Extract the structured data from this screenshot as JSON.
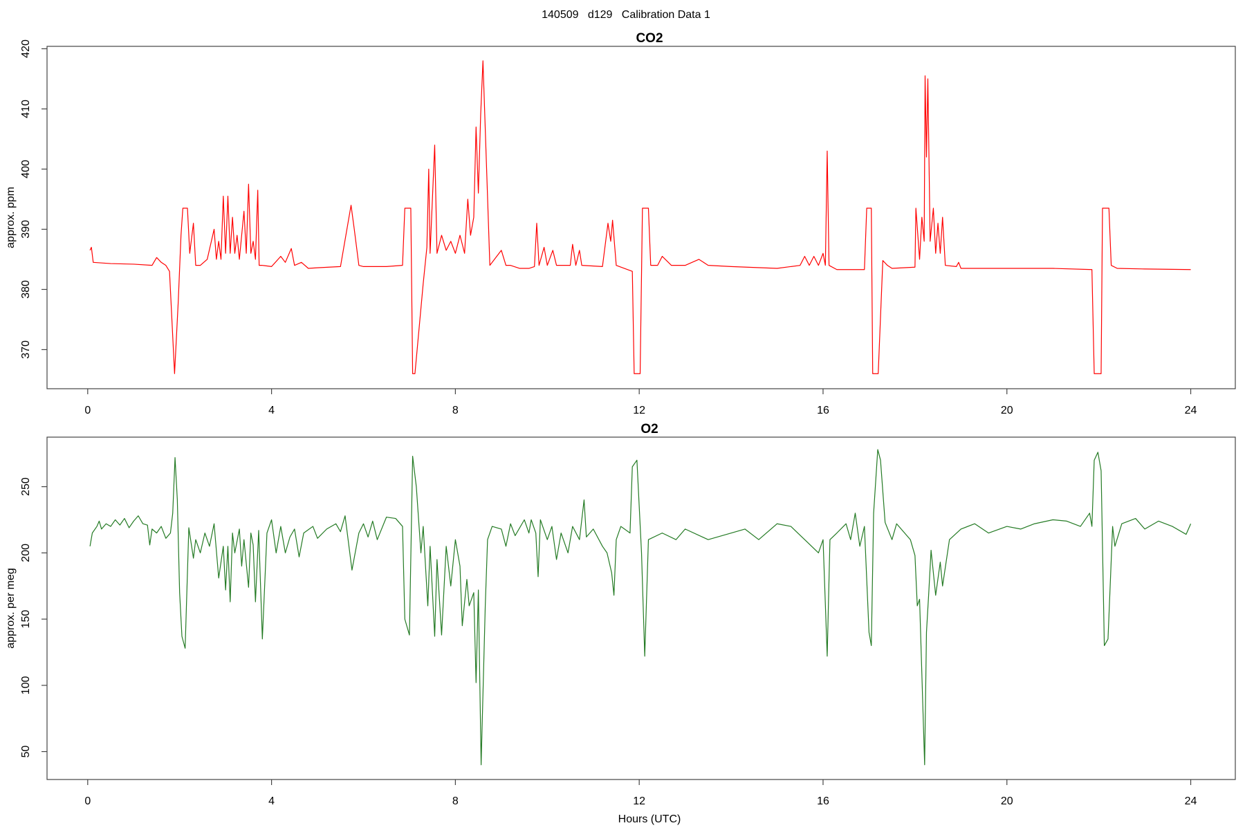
{
  "title": "140509   d129   Calibration Data 1",
  "chart_data": [
    {
      "type": "line",
      "title": "CO2",
      "y_label": "approx. ppm",
      "color": "#ff0000",
      "xlim": [
        -0.885,
        24.97
      ],
      "xticks": [
        0,
        4,
        8,
        12,
        16,
        20,
        24
      ],
      "ylim": [
        363.5,
        420.4
      ],
      "yticks": [
        370,
        380,
        390,
        400,
        410,
        420
      ],
      "x": [
        0.05,
        0.08,
        0.12,
        0.5,
        1.0,
        1.4,
        1.5,
        1.6,
        1.7,
        1.78,
        1.89,
        1.97,
        2.03,
        2.07,
        2.17,
        2.22,
        2.3,
        2.35,
        2.45,
        2.6,
        2.75,
        2.8,
        2.85,
        2.9,
        2.95,
        3.0,
        3.05,
        3.1,
        3.15,
        3.2,
        3.25,
        3.3,
        3.4,
        3.45,
        3.5,
        3.55,
        3.6,
        3.65,
        3.7,
        3.73,
        3.8,
        4.0,
        4.2,
        4.3,
        4.43,
        4.5,
        4.65,
        4.8,
        5.0,
        5.5,
        5.73,
        5.8,
        5.9,
        6.0,
        6.5,
        6.85,
        6.9,
        7.03,
        7.07,
        7.12,
        7.3,
        7.38,
        7.42,
        7.45,
        7.5,
        7.55,
        7.6,
        7.7,
        7.8,
        7.9,
        8.0,
        8.1,
        8.2,
        8.27,
        8.33,
        8.4,
        8.45,
        8.5,
        8.55,
        8.6,
        8.75,
        9.0,
        9.1,
        9.2,
        9.4,
        9.6,
        9.72,
        9.77,
        9.82,
        9.93,
        10.0,
        10.12,
        10.2,
        10.5,
        10.55,
        10.62,
        10.7,
        10.75,
        11.2,
        11.32,
        11.38,
        11.42,
        11.5,
        11.85,
        11.89,
        12.02,
        12.07,
        12.2,
        12.25,
        12.4,
        12.5,
        12.7,
        13.0,
        13.3,
        13.5,
        14.0,
        15.0,
        15.5,
        15.6,
        15.7,
        15.8,
        15.9,
        16.0,
        16.05,
        16.09,
        16.13,
        16.3,
        16.9,
        16.95,
        17.05,
        17.08,
        17.2,
        17.3,
        17.4,
        17.5,
        18.0,
        18.02,
        18.1,
        18.15,
        18.2,
        18.22,
        18.25,
        18.28,
        18.33,
        18.4,
        18.45,
        18.5,
        18.55,
        18.6,
        18.66,
        18.9,
        18.95,
        19.0,
        20.0,
        21.0,
        21.85,
        21.9,
        22.05,
        22.08,
        22.22,
        22.27,
        22.4,
        23.0,
        24.0
      ],
      "values": [
        386.5,
        387,
        384.5,
        384.3,
        384.2,
        384.0,
        385.3,
        384.5,
        384,
        383,
        366,
        378,
        389,
        393.5,
        393.5,
        386,
        391,
        384,
        384,
        385,
        390,
        385,
        388,
        385,
        395.5,
        386,
        395.5,
        386,
        392,
        386,
        389,
        385,
        393,
        386,
        397.5,
        386,
        388,
        385,
        396.5,
        384,
        384,
        383.8,
        385.5,
        384.5,
        386.8,
        384,
        384.5,
        383.5,
        383.6,
        383.8,
        394,
        390,
        384,
        383.8,
        383.8,
        384,
        393.5,
        393.5,
        366,
        366,
        381,
        387,
        400,
        386,
        395,
        404,
        386,
        389,
        386.5,
        388,
        386,
        389,
        386,
        395,
        389,
        392,
        407,
        396,
        409,
        418,
        384,
        386.5,
        384,
        384,
        383.5,
        383.5,
        383.8,
        391,
        384,
        387,
        384,
        386.5,
        384,
        384,
        387.5,
        384,
        386.5,
        384,
        383.8,
        391,
        388,
        391.5,
        384,
        383,
        366,
        366,
        393.5,
        393.5,
        384,
        384,
        385.5,
        384,
        384,
        385,
        384,
        383.8,
        383.5,
        384,
        385.5,
        384,
        385.5,
        384,
        386,
        384,
        403,
        384,
        383.3,
        383.3,
        393.5,
        393.5,
        366,
        366,
        384.8,
        384,
        383.5,
        383.7,
        393.5,
        385,
        392,
        388,
        415.5,
        402,
        415,
        388,
        393.5,
        386,
        391,
        386,
        392,
        384,
        383.8,
        384.5,
        383.5,
        383.5,
        383.5,
        383.3,
        366,
        366,
        393.5,
        393.5,
        384,
        383.5,
        383.4,
        383.3
      ]
    },
    {
      "type": "line",
      "title": "O2",
      "y_label": "approx. per meg",
      "x_label": "Hours (UTC)",
      "color": "#237a23",
      "xlim": [
        -0.885,
        24.97
      ],
      "xticks": [
        0,
        4,
        8,
        12,
        16,
        20,
        24
      ],
      "ylim": [
        28.9,
        287.4
      ],
      "yticks": [
        50,
        100,
        150,
        200,
        250
      ],
      "x": [
        0.05,
        0.1,
        0.2,
        0.25,
        0.3,
        0.4,
        0.5,
        0.6,
        0.7,
        0.8,
        0.9,
        1.0,
        1.1,
        1.2,
        1.3,
        1.35,
        1.4,
        1.5,
        1.6,
        1.7,
        1.8,
        1.85,
        1.9,
        1.95,
        2.0,
        2.05,
        2.12,
        2.2,
        2.3,
        2.35,
        2.45,
        2.55,
        2.65,
        2.75,
        2.85,
        2.95,
        3.0,
        3.05,
        3.1,
        3.15,
        3.2,
        3.3,
        3.35,
        3.4,
        3.5,
        3.55,
        3.6,
        3.65,
        3.72,
        3.8,
        3.9,
        4.0,
        4.1,
        4.2,
        4.3,
        4.4,
        4.5,
        4.6,
        4.7,
        4.9,
        5.0,
        5.2,
        5.4,
        5.5,
        5.6,
        5.75,
        5.9,
        6.0,
        6.1,
        6.2,
        6.3,
        6.5,
        6.7,
        6.85,
        6.9,
        7.0,
        7.07,
        7.15,
        7.25,
        7.3,
        7.4,
        7.45,
        7.55,
        7.6,
        7.7,
        7.8,
        7.9,
        8.0,
        8.1,
        8.15,
        8.25,
        8.3,
        8.4,
        8.45,
        8.5,
        8.56,
        8.65,
        8.7,
        8.8,
        9.0,
        9.1,
        9.2,
        9.3,
        9.5,
        9.6,
        9.65,
        9.75,
        9.8,
        9.85,
        10.0,
        10.1,
        10.2,
        10.3,
        10.45,
        10.55,
        10.7,
        10.8,
        10.85,
        11.0,
        11.2,
        11.3,
        11.4,
        11.45,
        11.5,
        11.6,
        11.8,
        11.85,
        11.95,
        12.05,
        12.12,
        12.2,
        12.5,
        12.8,
        13.0,
        13.5,
        14.0,
        14.3,
        14.6,
        15.0,
        15.3,
        15.6,
        15.9,
        16.0,
        16.09,
        16.15,
        16.3,
        16.5,
        16.6,
        16.7,
        16.8,
        16.9,
        17.0,
        17.05,
        17.1,
        17.19,
        17.25,
        17.35,
        17.5,
        17.6,
        17.9,
        18.0,
        18.05,
        18.1,
        18.21,
        18.25,
        18.3,
        18.35,
        18.45,
        18.55,
        18.6,
        18.75,
        19.0,
        19.3,
        19.6,
        20.0,
        20.3,
        20.6,
        21.0,
        21.3,
        21.6,
        21.8,
        21.85,
        21.9,
        21.98,
        22.05,
        22.12,
        22.2,
        22.3,
        22.35,
        22.5,
        22.8,
        23.0,
        23.3,
        23.6,
        23.9,
        24.0
      ],
      "values": [
        205,
        215,
        220,
        224,
        218,
        222,
        220,
        225,
        221,
        226,
        219,
        224,
        228,
        222,
        221,
        206,
        218,
        215,
        220,
        211,
        215,
        230,
        272,
        240,
        170,
        137,
        128,
        219,
        196,
        210,
        200,
        215,
        205,
        222,
        181,
        205,
        172,
        205,
        163,
        215,
        200,
        218,
        190,
        210,
        174,
        215,
        206,
        163,
        217,
        135,
        215,
        225,
        200,
        220,
        200,
        212,
        218,
        197,
        215,
        220,
        211,
        218,
        222,
        216,
        228,
        187,
        215,
        222,
        212,
        224,
        210,
        227,
        226,
        220,
        150,
        138,
        273,
        250,
        200,
        220,
        160,
        205,
        137,
        195,
        138,
        205,
        175,
        210,
        190,
        145,
        180,
        160,
        170,
        102,
        172,
        40,
        160,
        210,
        220,
        218,
        205,
        222,
        213,
        225,
        215,
        225,
        215,
        182,
        225,
        210,
        220,
        195,
        215,
        200,
        220,
        210,
        240,
        212,
        218,
        205,
        200,
        185,
        168,
        210,
        220,
        215,
        265,
        270,
        200,
        122,
        210,
        215,
        210,
        218,
        210,
        215,
        218,
        210,
        222,
        220,
        210,
        200,
        210,
        122,
        210,
        215,
        222,
        210,
        230,
        205,
        220,
        140,
        130,
        230,
        278,
        270,
        223,
        210,
        222,
        210,
        198,
        160,
        165,
        40,
        140,
        170,
        202,
        168,
        193,
        175,
        210,
        218,
        222,
        215,
        220,
        218,
        222,
        225,
        224,
        220,
        230,
        220,
        270,
        276,
        262,
        130,
        135,
        220,
        205,
        222,
        226,
        218,
        224,
        220,
        214,
        222
      ]
    }
  ]
}
